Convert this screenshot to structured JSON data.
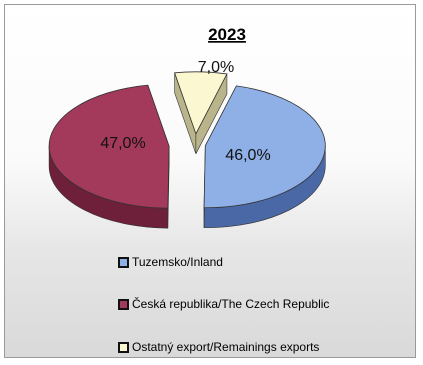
{
  "chart_data": {
    "type": "pie",
    "title": "2023",
    "slices": [
      {
        "label": "Tuzemsko/Inland",
        "value": 46.0,
        "value_label": "46,0%",
        "color": "#8fb0e6",
        "side_color": "#4a68a6"
      },
      {
        "label": "Česká republika/The Czech Republic",
        "value": 47.0,
        "value_label": "47,0%",
        "color": "#a33a5c",
        "side_color": "#6e1f3a"
      },
      {
        "label": "Ostatný export/Remainings exports",
        "value": 7.0,
        "value_label": "7,0%",
        "color": "#fbf7d0",
        "side_color": "#b9b48a"
      }
    ],
    "legend_position": "bottom"
  }
}
